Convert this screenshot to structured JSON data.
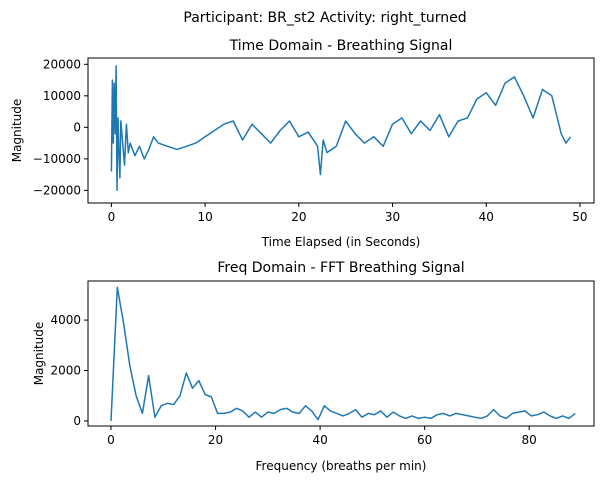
{
  "suptitle": "Participant: BR_st2  Activity: right_turned",
  "chart_data": [
    {
      "type": "line",
      "title": "Time Domain - Breathing Signal",
      "xlabel": "Time Elapsed (in Seconds)",
      "ylabel": "Magnitude",
      "xlim": [
        -2.5,
        51.5
      ],
      "ylim": [
        -24000,
        22000
      ],
      "xticks": [
        0,
        10,
        20,
        30,
        40,
        50
      ],
      "yticks": [
        -20000,
        -10000,
        0,
        10000,
        20000
      ],
      "xtick_labels": [
        "0",
        "10",
        "20",
        "30",
        "40",
        "50"
      ],
      "ytick_labels": [
        "−20000",
        "−10000",
        "0",
        "10000",
        "20000"
      ],
      "grid": false,
      "color": "#1f77b4",
      "series": [
        {
          "x": [
            0,
            0.1,
            0.2,
            0.3,
            0.4,
            0.5,
            0.6,
            0.7,
            0.8,
            0.9,
            1.0,
            1.2,
            1.4,
            1.6,
            1.8,
            2.0,
            2.5,
            3.0,
            3.5,
            4.0,
            4.5,
            5,
            6,
            7,
            8,
            9,
            10,
            11,
            12,
            13,
            14,
            15,
            16,
            17,
            18,
            19,
            20,
            21,
            22,
            22.3,
            22.6,
            23,
            24,
            25,
            26,
            27,
            28,
            29,
            30,
            31,
            32,
            33,
            34,
            35,
            36,
            37,
            38,
            39,
            40,
            41,
            42,
            43,
            44,
            45,
            46,
            47,
            47.5,
            48,
            48.5,
            49
          ],
          "y": [
            -14000,
            15000,
            -5000,
            14000,
            -2000,
            19500,
            -20000,
            3000,
            -8000,
            -16000,
            2000,
            -5000,
            -12000,
            1000,
            -8000,
            -5000,
            -9000,
            -6000,
            -10000,
            -7000,
            -3000,
            -5000,
            -6000,
            -7000,
            -6000,
            -5000,
            -3000,
            -1000,
            1000,
            2000,
            -4000,
            1000,
            -2000,
            -5000,
            -1000,
            2000,
            -3000,
            -1500,
            -6000,
            -15000,
            -4000,
            -8000,
            -6000,
            2000,
            -2000,
            -5000,
            -3000,
            -6000,
            1000,
            3000,
            -2000,
            2000,
            -1000,
            4000,
            -3000,
            2000,
            3000,
            9000,
            11000,
            7000,
            14000,
            16000,
            10000,
            3000,
            12000,
            10000,
            4000,
            -2000,
            -5000,
            -3000
          ]
        }
      ]
    },
    {
      "type": "line",
      "title": "Freq Domain - FFT Breathing Signal",
      "xlabel": "Frequency (breaths per min)",
      "ylabel": "Magnitude",
      "xlim": [
        -4.4,
        92.4
      ],
      "ylim": [
        -200,
        5550
      ],
      "xticks": [
        0,
        20,
        40,
        60,
        80
      ],
      "yticks": [
        0,
        2000,
        4000
      ],
      "xtick_labels": [
        "0",
        "20",
        "40",
        "60",
        "80"
      ],
      "ytick_labels": [
        "0",
        "2000",
        "4000"
      ],
      "grid": false,
      "color": "#1f77b4",
      "series": [
        {
          "x": [
            0,
            1.2,
            2.4,
            3.6,
            4.8,
            6.0,
            7.2,
            8.4,
            9.6,
            10.8,
            12.0,
            13.2,
            14.4,
            15.6,
            16.8,
            18.0,
            19.2,
            20.4,
            21.6,
            22.8,
            24.0,
            25.2,
            26.4,
            27.6,
            28.8,
            30.0,
            31.2,
            32.4,
            33.6,
            34.8,
            36.0,
            37.2,
            38.4,
            39.6,
            40.8,
            42.0,
            43.2,
            44.4,
            45.6,
            46.8,
            48.0,
            49.2,
            50.4,
            51.6,
            52.8,
            54.0,
            55.2,
            56.4,
            57.6,
            58.8,
            60.0,
            61.2,
            62.4,
            63.6,
            64.8,
            66.0,
            67.2,
            68.4,
            69.6,
            70.8,
            72.0,
            73.2,
            74.4,
            75.6,
            76.8,
            78.0,
            79.2,
            80.4,
            81.6,
            82.8,
            84.0,
            85.2,
            86.4,
            87.6,
            88.8
          ],
          "y": [
            0,
            5300,
            3900,
            2200,
            1000,
            300,
            1800,
            150,
            600,
            700,
            650,
            1000,
            1900,
            1300,
            1600,
            1050,
            950,
            300,
            300,
            350,
            500,
            400,
            150,
            350,
            150,
            350,
            300,
            450,
            500,
            350,
            300,
            600,
            400,
            50,
            600,
            400,
            300,
            200,
            300,
            450,
            150,
            300,
            250,
            400,
            150,
            350,
            200,
            100,
            200,
            100,
            150,
            100,
            250,
            300,
            200,
            300,
            250,
            200,
            150,
            100,
            200,
            450,
            200,
            100,
            300,
            350,
            400,
            200,
            250,
            350,
            200,
            100,
            200,
            100,
            300
          ]
        }
      ]
    }
  ]
}
